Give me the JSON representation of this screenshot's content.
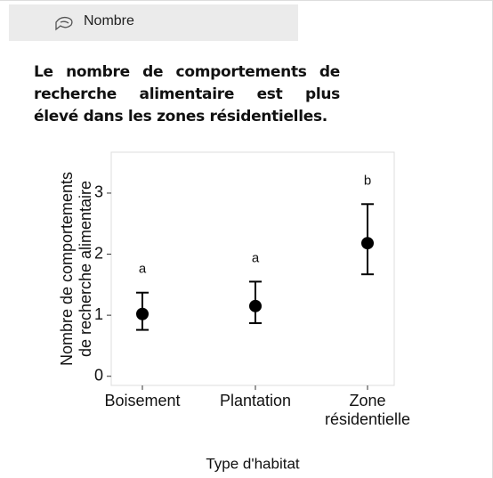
{
  "header": {
    "title": "Nombre"
  },
  "paragraph": {
    "lines": [
      "Le nombre de comportements de",
      "recherche alimentaire est plus",
      "élevé dans les zones résidentielles."
    ]
  },
  "chart_data": {
    "type": "errorbar_points",
    "categories": [
      "Boisement",
      "Plantation",
      "Zone\nrésidentielle"
    ],
    "values": [
      1.02,
      1.15,
      2.18
    ],
    "lower": [
      0.76,
      0.87,
      1.67
    ],
    "upper": [
      1.37,
      1.55,
      2.82
    ],
    "annotations": [
      "a",
      "a",
      "b"
    ],
    "color": "#000000",
    "xlabel": "Type d'habitat",
    "ylabel": "Nombre de comportements\nde recherche alimentaire",
    "ylim": [
      -0.15,
      3.67
    ],
    "yticks": [
      0,
      1,
      2,
      3
    ],
    "grid": false
  }
}
